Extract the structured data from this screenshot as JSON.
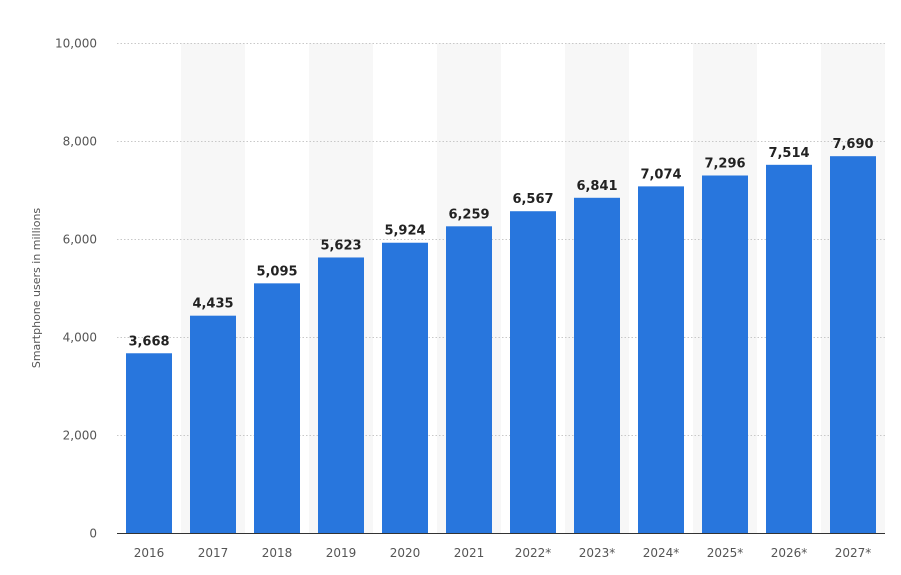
{
  "chart_data": {
    "type": "bar",
    "title": "",
    "xlabel": "",
    "ylabel": "Smartphone users in millions",
    "ylim": [
      0,
      10000
    ],
    "y_ticks": [
      "0",
      "2,000",
      "4,000",
      "6,000",
      "8,000",
      "10,000"
    ],
    "y_tick_values": [
      0,
      2000,
      4000,
      6000,
      8000,
      10000
    ],
    "categories": [
      "2016",
      "2017",
      "2018",
      "2019",
      "2020",
      "2021",
      "2022*",
      "2023*",
      "2024*",
      "2025*",
      "2026*",
      "2027*"
    ],
    "values": [
      3668,
      4435,
      5095,
      5623,
      5924,
      6259,
      6567,
      6841,
      7074,
      7296,
      7514,
      7690
    ],
    "value_labels": [
      "3,668",
      "4,435",
      "5,095",
      "5,623",
      "5,924",
      "6,259",
      "6,567",
      "6,841",
      "7,074",
      "7,296",
      "7,514",
      "7,690"
    ],
    "grid": true,
    "legend": "none",
    "colors": {
      "bar": "#2876dd",
      "band": "#f7f7f7",
      "grid": "#c8c8c8",
      "baseline": "#333333"
    }
  }
}
